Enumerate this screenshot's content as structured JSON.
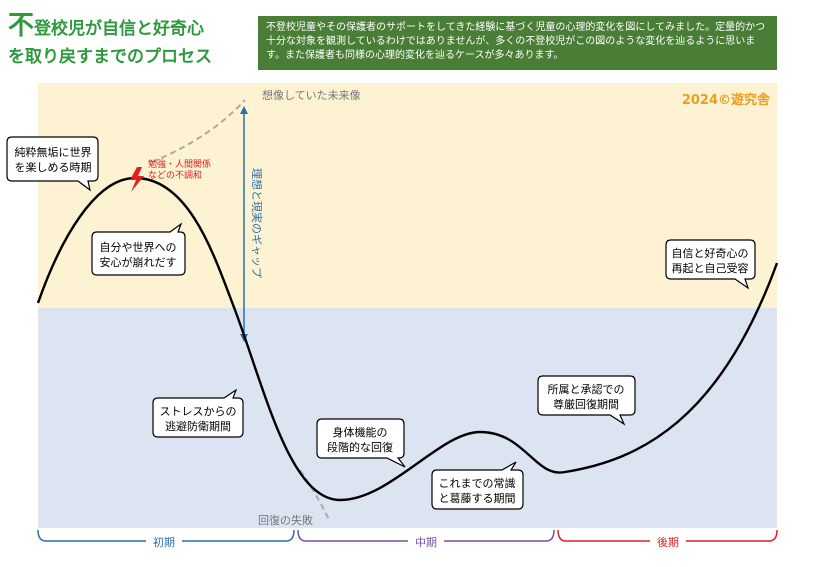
{
  "header": {
    "title_first_char": "不",
    "title_line1_rest": "登校児が自信と好奇心",
    "title_line2": "を取り戻すまでのプロセス",
    "note": "不登校児童やその保護者のサポートをしてきた経験に基づく児童の心理的変化を図にしてみました。定量的かつ十分な対象を観測しているわけではありませんが、多くの不登校児がこの図のような変化を辿るように思います。また保護者も同様の心理的変化を辿るケースが多々あります。"
  },
  "diagram": {
    "copyright": "2024©遊究舎",
    "ideal_future_label": "想像していた未来像",
    "gap_label": "理想と現実のギャップ",
    "recovery_failure_label": "回復の失敗",
    "trigger_label_line1": "勉強・人間関係",
    "trigger_label_line2": "などの不調和",
    "bubbles": [
      {
        "lines": [
          "純粋無垢に世界",
          "を楽しめる時期"
        ]
      },
      {
        "lines": [
          "自分や世界への",
          "安心が崩れだす"
        ]
      },
      {
        "lines": [
          "ストレスからの",
          "逃避防衛期間"
        ]
      },
      {
        "lines": [
          "身体機能の",
          "段階的な回復"
        ]
      },
      {
        "lines": [
          "これまでの常識",
          "と葛藤する期間"
        ]
      },
      {
        "lines": [
          "所属と承認での",
          "尊厳回復期間"
        ]
      },
      {
        "lines": [
          "自信と好奇心の",
          "再起と自己受容"
        ]
      }
    ],
    "phases": [
      {
        "label": "初期",
        "color": "#2f6fa8"
      },
      {
        "label": "中期",
        "color": "#7b4fa0"
      },
      {
        "label": "後期",
        "color": "#e02020"
      }
    ],
    "colors": {
      "upper_zone": "#fdf2d2",
      "lower_zone": "#dce4f2",
      "curve": "#000000",
      "gap_arrow": "#2f6fa8",
      "trigger": "#e02020",
      "copyright": "#e8a020",
      "dashed": "#aaaaaa"
    }
  }
}
